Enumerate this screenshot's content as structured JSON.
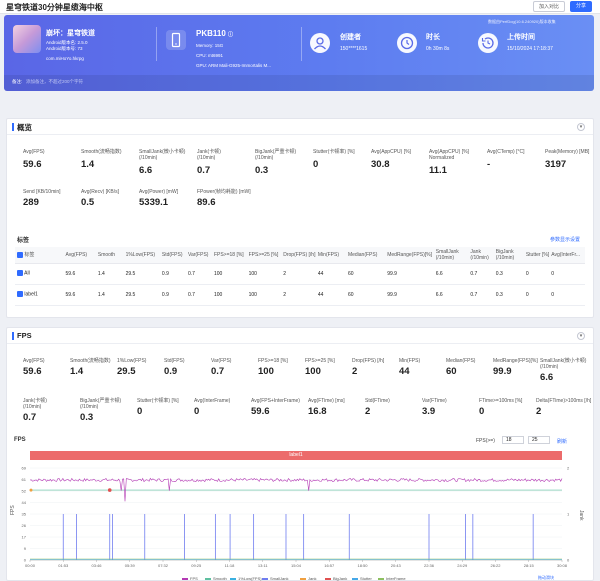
{
  "header": {
    "title": "星穹铁道30分钟星缆海中枢",
    "btn_invite": "加入对比",
    "btn_share": "分享"
  },
  "hero": {
    "app_name": "崩坏：星穹铁道",
    "android_version": "Android版本名: 2.5.0",
    "android_code": "Android版本号: 73",
    "package": "com.miHoYo.hkrpg",
    "device": "PKB110",
    "memory": "Memory: 15G",
    "cpu": "CPU: mt6991",
    "gpu": "GPU: ARM Mali-G925-Immortalis M...",
    "creator_label": "创建者",
    "creator_value": "150****1615",
    "duration_label": "时长",
    "duration_value": "0h 30m 8s",
    "upload_label": "上传时间",
    "upload_value": "15/10/2024 17:18:37",
    "version_tag": "数据由PerfDog(10.6.240920)版本收集",
    "note_label": "备注:",
    "note_placeholder": "添加备注，不超过200个字符"
  },
  "overview": {
    "title": "概览",
    "row1": [
      {
        "label": "Avg(FPS)",
        "value": "59.6"
      },
      {
        "label": "Smooth(流畅指数)",
        "value": "1.4"
      },
      {
        "label": "SmallJank(微小卡顿)\n(/10min)",
        "value": "6.6"
      },
      {
        "label": "Jank(卡顿)\n(/10min)",
        "value": "0.7"
      },
      {
        "label": "BigJank(严重卡顿)\n(/10min)",
        "value": "0.3"
      },
      {
        "label": "Stutter(卡顿率) [%]",
        "value": "0"
      },
      {
        "label": "Avg(AppCPU) [%]",
        "value": "30.8"
      },
      {
        "label": "Avg(AppCPU) [%]\nNormalized",
        "value": "11.1"
      },
      {
        "label": "Avg(CTemp) [°C]",
        "value": "-"
      },
      {
        "label": "Peak(Memory) [MB]",
        "value": "3197"
      }
    ],
    "row2": [
      {
        "label": "Send [KB/10min]",
        "value": "289"
      },
      {
        "label": "Avg(Recv) [KB/s]",
        "value": "0.5"
      },
      {
        "label": "Avg(Power) [mW]",
        "value": "5339.1"
      },
      {
        "label": "FPower(帧均耗能) [mW]",
        "value": "89.6"
      }
    ],
    "labels_title": "标签",
    "labels_link": "参数显示设置",
    "table": {
      "headers": [
        "标签",
        "Avg(FPS)",
        "Smooth",
        "1%Low(FPS)",
        "Std(FPS)",
        "Var(FPS)",
        "FPS>=18 [%]",
        "FPS>=25 [%]",
        "Drop(FPS) [/h]",
        "Min(FPS)",
        "Median(FPS)",
        "MedRange(FPS)[%]",
        "SmallJank\n(/10min)",
        "Jank\n(/10min)",
        "BigJank\n(/10min)",
        "Stutter [%]",
        "Avg(InterFr..."
      ],
      "rows": [
        [
          "All",
          "59.6",
          "1.4",
          "29.5",
          "0.9",
          "0.7",
          "100",
          "100",
          "2",
          "44",
          "60",
          "99.9",
          "6.6",
          "0.7",
          "0.3",
          "0",
          "0"
        ],
        [
          "label1",
          "59.6",
          "1.4",
          "29.5",
          "0.9",
          "0.7",
          "100",
          "100",
          "2",
          "44",
          "60",
          "99.9",
          "6.6",
          "0.7",
          "0.3",
          "0",
          "0"
        ]
      ]
    }
  },
  "fps": {
    "title": "FPS",
    "row1": [
      {
        "label": "Avg(FPS)",
        "value": "59.6"
      },
      {
        "label": "Smooth(流畅指数)",
        "value": "1.4"
      },
      {
        "label": "1%Low(FPS)",
        "value": "29.5"
      },
      {
        "label": "Std(FPS)",
        "value": "0.9"
      },
      {
        "label": "Var(FPS)",
        "value": "0.7"
      },
      {
        "label": "FPS>=18 [%]",
        "value": "100"
      },
      {
        "label": "FPS>=25 [%]",
        "value": "100"
      },
      {
        "label": "Drop(FPS) [/h]",
        "value": "2"
      },
      {
        "label": "Min(FPS)",
        "value": "44"
      },
      {
        "label": "Median(FPS)",
        "value": "60"
      },
      {
        "label": "MedRange(FPS)[%]",
        "value": "99.9"
      },
      {
        "label": "SmallJank(微小卡顿)\n(/10min)",
        "value": "6.6"
      }
    ],
    "row2": [
      {
        "label": "Jank(卡顿)\n(/10min)",
        "value": "0.7"
      },
      {
        "label": "BigJank(严重卡顿)\n(/10min)",
        "value": "0.3"
      },
      {
        "label": "Stutter(卡顿率) [%]",
        "value": "0"
      },
      {
        "label": "Avg(InterFrame)",
        "value": "0"
      },
      {
        "label": "Avg(FPS+InterFrame)",
        "value": "59.6"
      },
      {
        "label": "Avg(FTime) [ms]",
        "value": "16.8"
      },
      {
        "label": "Std(FTime)",
        "value": "2"
      },
      {
        "label": "Var(FTime)",
        "value": "3.9"
      },
      {
        "label": "FTime>=100ms [%]",
        "value": "0"
      },
      {
        "label": "Delta(FTime)>100ms [/h]",
        "value": "2"
      }
    ],
    "chart_label": "FPS",
    "threshold_label": "FPS(>=)",
    "threshold_a": "18",
    "threshold_b": "25",
    "threshold_btn": "刷新",
    "sublabel": "label1",
    "drag_label": "拖动滑块"
  },
  "chart_data": {
    "type": "line",
    "title": "",
    "ylabel_left": "FPS",
    "ylabel_right": "Jank",
    "yticks_left": [
      "69",
      "61",
      "52",
      "44",
      "35",
      "26",
      "17",
      "9",
      "0"
    ],
    "yticks_right": [
      "2",
      "1",
      "0"
    ],
    "xticks": [
      "00:00",
      "01:53",
      "03:46",
      "05:39",
      "07:32",
      "09:25",
      "11:18",
      "13:11",
      "15:04",
      "16:57",
      "18:50",
      "20:43",
      "22:36",
      "24:29",
      "26:22",
      "28:15",
      "30:08"
    ],
    "series": [
      {
        "name": "FPS",
        "color": "#b43ab4",
        "approx_value": 60,
        "dips": [
          44,
          52
        ]
      },
      {
        "name": "Smooth",
        "color": "#5fc0a0"
      },
      {
        "name": "1%Low(FPS)",
        "color": "#3ab0e0"
      },
      {
        "name": "SmallJank",
        "color": "#6f7df0"
      },
      {
        "name": "Jank",
        "color": "#f0a040"
      },
      {
        "name": "BigJank",
        "color": "#e05050"
      },
      {
        "name": "Stutter",
        "color": "#46a8e8"
      },
      {
        "name": "InterFrame",
        "color": "#8dc060"
      }
    ],
    "jank_spikes_x": [
      "01:53",
      "02:38",
      "04:31",
      "04:40",
      "06:30",
      "08:45",
      "10:30",
      "11:20",
      "12:40",
      "14:30",
      "15:30",
      "18:05",
      "22:36",
      "24:40",
      "25:05",
      "28:30"
    ],
    "ylim": [
      0,
      69
    ]
  }
}
